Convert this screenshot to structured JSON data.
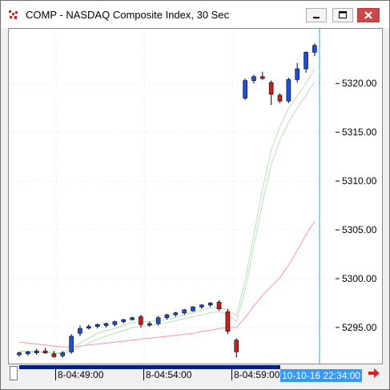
{
  "window": {
    "title": "COMP - NASDAQ Composite Index, 30 Sec",
    "buttons": [
      "minimize",
      "maximize",
      "close"
    ]
  },
  "colors": {
    "up_candle": "#1f4fd6",
    "down_candle": "#c81e1e",
    "ma_fast": "#b7e0b7",
    "ma_slow": "#ff8fbf",
    "cursor_line": "#2aa6c8",
    "nav_strip": "#001f8a",
    "cursor_label_bg": "#3399ff",
    "scroll_arrow": "#e02020"
  },
  "icons": {
    "app": "chart-app-icon",
    "minimize": "minimize-icon",
    "maximize": "maximize-icon",
    "close": "close-icon",
    "scroll_right": "right-arrow-icon"
  },
  "x_axis": {
    "labels": [
      "8-04:49:00",
      "8-04:54:00",
      "8-04:59:00"
    ],
    "cursor_label": "10-10-16 22:34:00"
  },
  "chart_data": {
    "type": "candlestick",
    "y_ticks": [
      "5320.00",
      "5315.00",
      "5310.00",
      "5305.00",
      "5300.00",
      "5295.00"
    ],
    "y_tick_values": [
      5320,
      5315,
      5310,
      5305,
      5300,
      5295
    ],
    "ylim": [
      5291.3,
      5325.6
    ],
    "grid": true,
    "candles": [
      {
        "o": 5292.2,
        "h": 5292.5,
        "l": 5292.0,
        "c": 5292.4
      },
      {
        "o": 5292.3,
        "h": 5292.6,
        "l": 5292.1,
        "c": 5292.5
      },
      {
        "o": 5292.4,
        "h": 5292.8,
        "l": 5292.2,
        "c": 5292.6
      },
      {
        "o": 5292.6,
        "h": 5292.9,
        "l": 5292.3,
        "c": 5292.4
      },
      {
        "o": 5292.3,
        "h": 5292.6,
        "l": 5291.9,
        "c": 5292.0
      },
      {
        "o": 5292.1,
        "h": 5292.6,
        "l": 5291.9,
        "c": 5292.4
      },
      {
        "o": 5292.5,
        "h": 5294.3,
        "l": 5292.3,
        "c": 5294.1
      },
      {
        "o": 5294.4,
        "h": 5295.2,
        "l": 5294.1,
        "c": 5294.9
      },
      {
        "o": 5295.0,
        "h": 5295.3,
        "l": 5294.8,
        "c": 5295.1
      },
      {
        "o": 5295.1,
        "h": 5295.4,
        "l": 5294.9,
        "c": 5295.3
      },
      {
        "o": 5295.2,
        "h": 5295.5,
        "l": 5295.0,
        "c": 5295.4
      },
      {
        "o": 5295.3,
        "h": 5295.7,
        "l": 5295.1,
        "c": 5295.6
      },
      {
        "o": 5295.6,
        "h": 5295.9,
        "l": 5295.4,
        "c": 5295.8
      },
      {
        "o": 5295.8,
        "h": 5296.1,
        "l": 5295.7,
        "c": 5296.0
      },
      {
        "o": 5296.1,
        "h": 5296.3,
        "l": 5295.0,
        "c": 5295.3
      },
      {
        "o": 5295.3,
        "h": 5295.6,
        "l": 5295.1,
        "c": 5295.4
      },
      {
        "o": 5295.4,
        "h": 5296.2,
        "l": 5295.2,
        "c": 5296.0
      },
      {
        "o": 5296.0,
        "h": 5296.4,
        "l": 5295.8,
        "c": 5296.3
      },
      {
        "o": 5296.3,
        "h": 5296.6,
        "l": 5296.1,
        "c": 5296.5
      },
      {
        "o": 5296.5,
        "h": 5296.9,
        "l": 5296.3,
        "c": 5296.8
      },
      {
        "o": 5296.7,
        "h": 5297.2,
        "l": 5296.6,
        "c": 5297.1
      },
      {
        "o": 5297.1,
        "h": 5297.4,
        "l": 5296.9,
        "c": 5297.3
      },
      {
        "o": 5297.3,
        "h": 5297.6,
        "l": 5297.1,
        "c": 5297.5
      },
      {
        "o": 5297.6,
        "h": 5297.8,
        "l": 5296.7,
        "c": 5296.9
      },
      {
        "o": 5296.6,
        "h": 5296.9,
        "l": 5294.3,
        "c": 5294.6
      },
      {
        "o": 5293.7,
        "h": 5293.9,
        "l": 5291.9,
        "c": 5292.5
      },
      {
        "o": 5318.5,
        "h": 5320.5,
        "l": 5318.3,
        "c": 5320.3
      },
      {
        "o": 5320.3,
        "h": 5320.9,
        "l": 5320.0,
        "c": 5320.7
      },
      {
        "o": 5320.7,
        "h": 5321.2,
        "l": 5320.4,
        "c": 5320.5
      },
      {
        "o": 5320.1,
        "h": 5320.3,
        "l": 5317.8,
        "c": 5318.9
      },
      {
        "o": 5318.8,
        "h": 5319.0,
        "l": 5318.0,
        "c": 5318.2
      },
      {
        "o": 5318.2,
        "h": 5320.6,
        "l": 5318.0,
        "c": 5320.4
      },
      {
        "o": 5320.4,
        "h": 5322.1,
        "l": 5320.1,
        "c": 5321.5
      },
      {
        "o": 5321.5,
        "h": 5323.3,
        "l": 5321.1,
        "c": 5323.2
      },
      {
        "o": 5323.2,
        "h": 5324.1,
        "l": 5322.8,
        "c": 5323.9
      }
    ],
    "ma_fast": [
      5292.6,
      5292.6,
      5292.5,
      5292.5,
      5292.4,
      5292.4,
      5292.9,
      5293.4,
      5293.9,
      5294.4,
      5294.7,
      5294.9,
      5295.2,
      5295.5,
      5295.6,
      5295.6,
      5295.7,
      5295.8,
      5296.0,
      5296.3,
      5296.5,
      5296.8,
      5297.0,
      5297.1,
      5296.8,
      5296.2,
      5299.8,
      5304.5,
      5309.2,
      5313.2,
      5315.6,
      5317.4,
      5318.7,
      5320.0,
      5321.5
    ],
    "ma_mid": [
      5292.5,
      5292.5,
      5292.5,
      5292.4,
      5292.4,
      5292.3,
      5292.6,
      5293.0,
      5293.4,
      5293.8,
      5294.1,
      5294.4,
      5294.7,
      5295.0,
      5295.1,
      5295.2,
      5295.3,
      5295.5,
      5295.7,
      5295.9,
      5296.1,
      5296.3,
      5296.5,
      5296.6,
      5296.3,
      5295.6,
      5298.8,
      5303.3,
      5307.8,
      5311.7,
      5314.2,
      5316.0,
      5317.5,
      5318.8,
      5320.2
    ],
    "ma_slow": [
      5293.5,
      5293.4,
      5293.3,
      5293.2,
      5293.1,
      5293.0,
      5293.0,
      5293.1,
      5293.2,
      5293.3,
      5293.4,
      5293.5,
      5293.6,
      5293.7,
      5293.8,
      5293.9,
      5294.0,
      5294.1,
      5294.2,
      5294.3,
      5294.4,
      5294.6,
      5294.7,
      5294.9,
      5295.0,
      5295.0,
      5296.0,
      5297.2,
      5298.3,
      5299.2,
      5300.1,
      5301.4,
      5302.9,
      5304.5,
      5305.9
    ]
  }
}
